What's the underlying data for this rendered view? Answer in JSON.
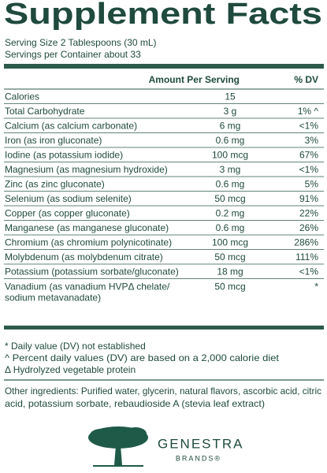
{
  "title": "Supplement Facts",
  "serving_size": "Serving Size 2 Tablespoons (30 mL)",
  "servings_per_container": "Servings per Container about 33",
  "table": {
    "header": {
      "amount": "Amount Per Serving",
      "dv": "% DV"
    },
    "rows": [
      {
        "name": "Calories",
        "amount": "15",
        "dv": ""
      },
      {
        "name": "Total Carbohydrate",
        "amount": "3 g",
        "dv": "1% ^"
      },
      {
        "name": "Calcium (as calcium carbonate)",
        "amount": "6 mg",
        "dv": "<1%"
      },
      {
        "name": "Iron (as iron gluconate)",
        "amount": "0.6 mg",
        "dv": "3%"
      },
      {
        "name": "Iodine (as potassium iodide)",
        "amount": "100 mcg",
        "dv": "67%"
      },
      {
        "name": "Magnesium (as magnesium hydroxide)",
        "amount": "3 mg",
        "dv": "<1%"
      },
      {
        "name": "Zinc (as zinc gluconate)",
        "amount": "0.6 mg",
        "dv": "5%"
      },
      {
        "name": "Selenium (as sodium selenite)",
        "amount": "50 mcg",
        "dv": "91%"
      },
      {
        "name": "Copper (as copper gluconate)",
        "amount": "0.2 mg",
        "dv": "22%"
      },
      {
        "name": "Manganese (as manganese gluconate)",
        "amount": "0.6 mg",
        "dv": "26%"
      },
      {
        "name": "Chromium (as chromium polynicotinate)",
        "amount": "100 mcg",
        "dv": "286%"
      },
      {
        "name": "Molybdenum (as molybdenum citrate)",
        "amount": "50 mcg",
        "dv": "111%"
      },
      {
        "name": "Potassium (potassium sorbate/gluconate)",
        "amount": "18 mg",
        "dv": "<1%"
      },
      {
        "name": [
          "Vanadium (as vanadium HVPΔ chelate/",
          "sodium metavanadate)"
        ],
        "amount": "50 mcg",
        "dv": "*"
      }
    ]
  },
  "footnotes": [
    "* Daily value (DV) not established",
    "^ Percent daily values (DV) are based on a 2,000 calorie diet",
    "Δ Hydrolyzed vegetable protein"
  ],
  "other_ingredients": [
    "Other ingredients: Purified water, glycerin, natural flavors, ascorbic acid, citric",
    "acid, potassium sorbate, rebaudioside A (stevia leaf extract)"
  ],
  "brand": {
    "name": "GENESTRA",
    "sub": "BRANDS®"
  }
}
